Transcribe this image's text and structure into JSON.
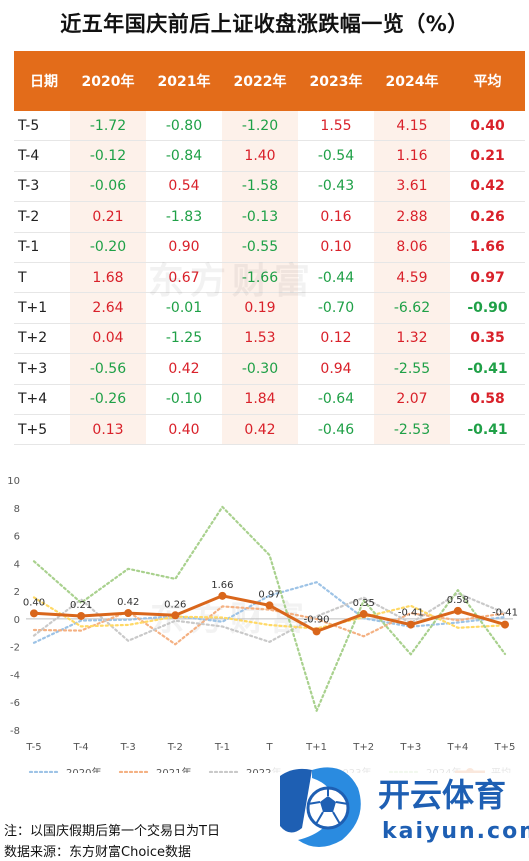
{
  "title": "近五年国庆前后上证收盘涨跌幅一览（%）",
  "table": {
    "headers": [
      "日期",
      "2020年",
      "2021年",
      "2022年",
      "2023年",
      "2024年",
      "平均"
    ],
    "rows": [
      {
        "label": "T-5",
        "values": [
          "-1.72",
          "-0.80",
          "-1.20",
          "1.55",
          "4.15",
          "0.40"
        ]
      },
      {
        "label": "T-4",
        "values": [
          "-0.12",
          "-0.84",
          "1.40",
          "-0.54",
          "1.16",
          "0.21"
        ]
      },
      {
        "label": "T-3",
        "values": [
          "-0.06",
          "0.54",
          "-1.58",
          "-0.43",
          "3.61",
          "0.42"
        ]
      },
      {
        "label": "T-2",
        "values": [
          "0.21",
          "-1.83",
          "-0.13",
          "0.16",
          "2.88",
          "0.26"
        ]
      },
      {
        "label": "T-1",
        "values": [
          "-0.20",
          "0.90",
          "-0.55",
          "0.10",
          "8.06",
          "1.66"
        ]
      },
      {
        "label": "T",
        "values": [
          "1.68",
          "0.67",
          "-1.66",
          "-0.44",
          "4.59",
          "0.97"
        ]
      },
      {
        "label": "T+1",
        "values": [
          "2.64",
          "-0.01",
          "0.19",
          "-0.70",
          "-6.62",
          "-0.90"
        ]
      },
      {
        "label": "T+2",
        "values": [
          "0.04",
          "-1.25",
          "1.53",
          "0.12",
          "1.32",
          "0.35"
        ]
      },
      {
        "label": "T+3",
        "values": [
          "-0.56",
          "0.42",
          "-0.30",
          "0.94",
          "-2.55",
          "-0.41"
        ]
      },
      {
        "label": "T+4",
        "values": [
          "-0.26",
          "-0.10",
          "1.84",
          "-0.64",
          "2.07",
          "0.58"
        ]
      },
      {
        "label": "T+5",
        "values": [
          "0.13",
          "0.40",
          "0.42",
          "-0.46",
          "-2.53",
          "-0.41"
        ]
      }
    ]
  },
  "watermark": "东方财富",
  "chart_data": {
    "type": "line",
    "categories": [
      "T-5",
      "T-4",
      "T-3",
      "T-2",
      "T-1",
      "T",
      "T+1",
      "T+2",
      "T+3",
      "T+4",
      "T+5"
    ],
    "ylim": [
      -8,
      10
    ],
    "yticks": [
      -8,
      -6,
      -4,
      -2,
      0,
      2,
      4,
      6,
      8,
      10
    ],
    "grid": false,
    "legend_position": "bottom",
    "series": [
      {
        "name": "2020年",
        "color": "#9dc3e6",
        "style": "dotted",
        "values": [
          -1.72,
          -0.12,
          -0.06,
          0.21,
          -0.2,
          1.68,
          2.64,
          0.04,
          -0.56,
          -0.26,
          0.13
        ]
      },
      {
        "name": "2021年",
        "color": "#f4b183",
        "style": "dotted",
        "values": [
          -0.8,
          -0.84,
          0.54,
          -1.83,
          0.9,
          0.67,
          -0.01,
          -1.25,
          0.42,
          -0.1,
          0.4
        ]
      },
      {
        "name": "2022年",
        "color": "#c9c9c9",
        "style": "dotted",
        "values": [
          -1.2,
          1.4,
          -1.58,
          -0.13,
          -0.55,
          -1.66,
          0.19,
          1.53,
          -0.3,
          1.84,
          0.42
        ]
      },
      {
        "name": "2023年",
        "color": "#ffd966",
        "style": "dotted",
        "values": [
          1.55,
          -0.54,
          -0.43,
          0.16,
          0.1,
          -0.44,
          -0.7,
          0.12,
          0.94,
          -0.64,
          -0.46
        ]
      },
      {
        "name": "2024年",
        "color": "#a9d18e",
        "style": "dotted",
        "values": [
          4.15,
          1.16,
          3.61,
          2.88,
          8.06,
          4.59,
          -6.62,
          1.32,
          -2.55,
          2.07,
          -2.53
        ]
      },
      {
        "name": "平均",
        "color": "#d9661b",
        "style": "solid",
        "values": [
          0.4,
          0.21,
          0.42,
          0.26,
          1.66,
          0.97,
          -0.9,
          0.35,
          -0.41,
          0.58,
          -0.41
        ],
        "data_labels": [
          "0.40",
          "0.21",
          "0.42",
          "0.26",
          "1.66",
          "0.97",
          "-0.90",
          "0.35",
          "-0.41",
          "0.58",
          "-0.41"
        ]
      }
    ]
  },
  "notes": {
    "line1": "注：以国庆假期后第一个交易日为T日",
    "line2": "数据来源：东方财富Choice数据"
  },
  "logo": {
    "name": "开云体育",
    "sub": "kaiyun.com",
    "color": "#1e5fb3"
  }
}
